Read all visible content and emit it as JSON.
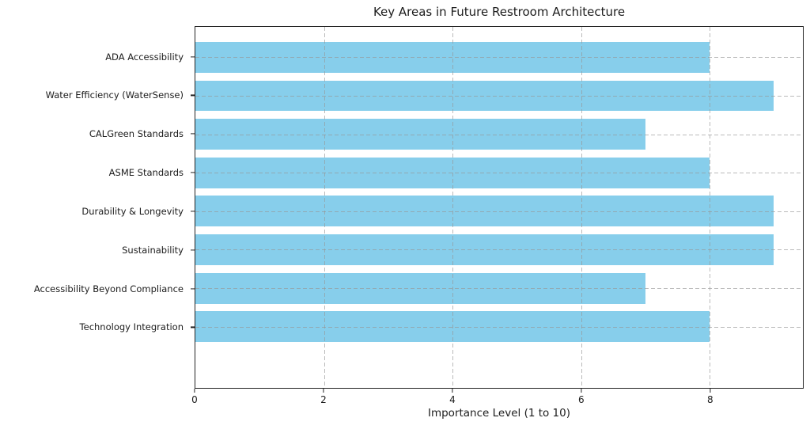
{
  "chart_data": {
    "type": "bar",
    "orientation": "horizontal",
    "title": "Key Areas in Future Restroom Architecture",
    "xlabel": "Importance Level (1 to 10)",
    "categories": [
      "ADA Accessibility",
      "Water Efficiency (WaterSense)",
      "CALGreen Standards",
      "ASME Standards",
      "Durability & Longevity",
      "Sustainability",
      "Accessibility Beyond Compliance",
      "Technology Integration"
    ],
    "values": [
      8,
      9,
      7,
      8,
      9,
      9,
      7,
      8
    ],
    "xlim": [
      0,
      9.45
    ],
    "xticks": [
      0,
      2,
      4,
      6,
      8
    ],
    "grid": "dashed-both-axes-above-bars",
    "legend": "none",
    "colors": {
      "bar": "#87CEEB",
      "grid": "#969696",
      "spine": "#222222",
      "text": "#1c1c1c",
      "background": "#ffffff"
    }
  }
}
